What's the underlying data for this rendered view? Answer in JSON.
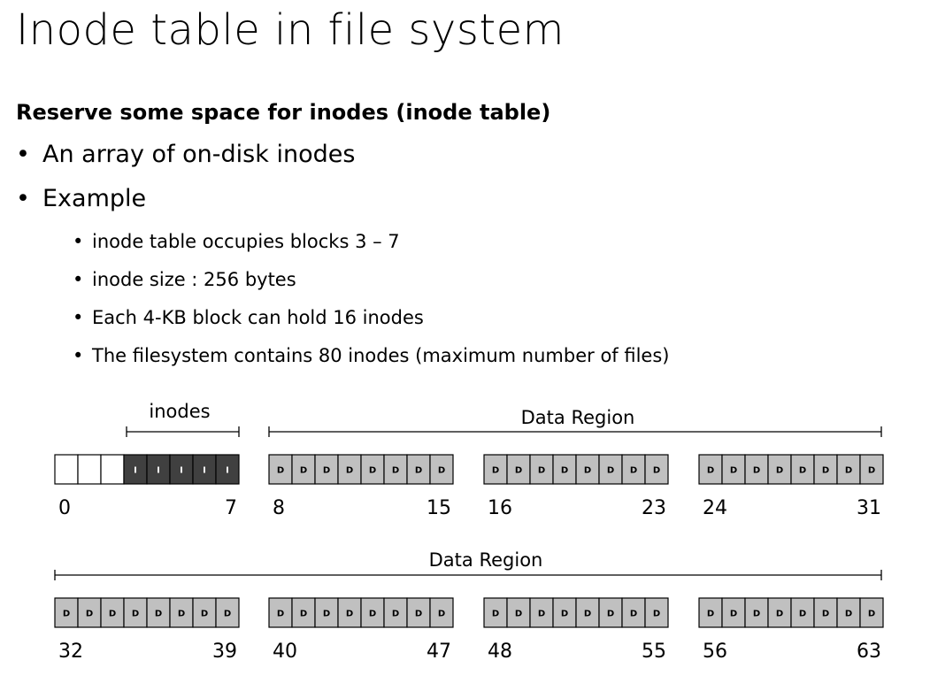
{
  "title": "Inode table in file system",
  "heading": "Reserve some space for inodes (inode table)",
  "bullets": [
    "An array of on-disk inodes",
    "Example"
  ],
  "sub_bullets": [
    "inode table occupies blocks 3 – 7",
    "inode size : 256 bytes",
    "Each 4-KB block can hold 16 inodes",
    "The filesystem contains 80 inodes (maximum number of files)"
  ],
  "diagram": {
    "inodes_label": "inodes",
    "data_region_label": "Data Region",
    "inode_block_letter": "I",
    "data_block_letter": "D",
    "colors": {
      "empty": "#ffffff",
      "inode": "#404040",
      "data": "#c0c0c0",
      "line": "#000000"
    },
    "row1": {
      "groups": [
        {
          "start": "0",
          "end": "7",
          "blocks": [
            "",
            "",
            "",
            "I",
            "I",
            "I",
            "I",
            "I"
          ]
        },
        {
          "start": "8",
          "end": "15",
          "blocks": [
            "D",
            "D",
            "D",
            "D",
            "D",
            "D",
            "D",
            "D"
          ]
        },
        {
          "start": "16",
          "end": "23",
          "blocks": [
            "D",
            "D",
            "D",
            "D",
            "D",
            "D",
            "D",
            "D"
          ]
        },
        {
          "start": "24",
          "end": "31",
          "blocks": [
            "D",
            "D",
            "D",
            "D",
            "D",
            "D",
            "D",
            "D"
          ]
        }
      ]
    },
    "row2": {
      "groups": [
        {
          "start": "32",
          "end": "39",
          "blocks": [
            "D",
            "D",
            "D",
            "D",
            "D",
            "D",
            "D",
            "D"
          ]
        },
        {
          "start": "40",
          "end": "47",
          "blocks": [
            "D",
            "D",
            "D",
            "D",
            "D",
            "D",
            "D",
            "D"
          ]
        },
        {
          "start": "48",
          "end": "55",
          "blocks": [
            "D",
            "D",
            "D",
            "D",
            "D",
            "D",
            "D",
            "D"
          ]
        },
        {
          "start": "56",
          "end": "63",
          "blocks": [
            "D",
            "D",
            "D",
            "D",
            "D",
            "D",
            "D",
            "D"
          ]
        }
      ]
    }
  }
}
